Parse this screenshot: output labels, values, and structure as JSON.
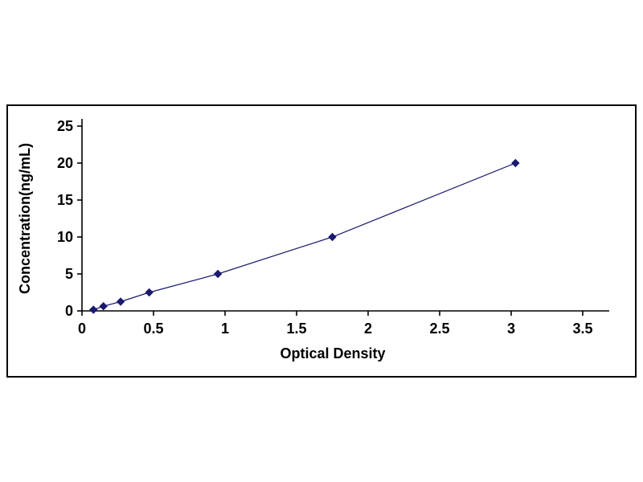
{
  "figure": {
    "background": "#ffffff",
    "border_color": "#000000"
  },
  "chart_data": {
    "type": "scatter",
    "title": "",
    "xlabel": "Optical Density",
    "ylabel": "Concentration(ng/mL)",
    "x": [
      0.08,
      0.15,
      0.27,
      0.47,
      0.95,
      1.75,
      3.03
    ],
    "y": [
      0.16,
      0.63,
      1.25,
      2.5,
      5,
      10,
      20
    ],
    "xlim": [
      0,
      3.5
    ],
    "ylim": [
      0,
      25
    ],
    "x_ticks": [
      0,
      0.5,
      1,
      1.5,
      2,
      2.5,
      3,
      3.5
    ],
    "x_tick_labels": [
      "0",
      "0.5",
      "1",
      "1.5",
      "2",
      "2.5",
      "3",
      "3.5"
    ],
    "y_ticks": [
      0,
      5,
      10,
      15,
      20,
      25
    ],
    "y_tick_labels": [
      "0",
      "5",
      "10",
      "15",
      "20",
      "25"
    ],
    "marker": "diamond",
    "marker_color": "#1a1a6e",
    "line_color": "#1a1a6e",
    "axis_color": "#000000",
    "grid": false,
    "legend": false
  }
}
